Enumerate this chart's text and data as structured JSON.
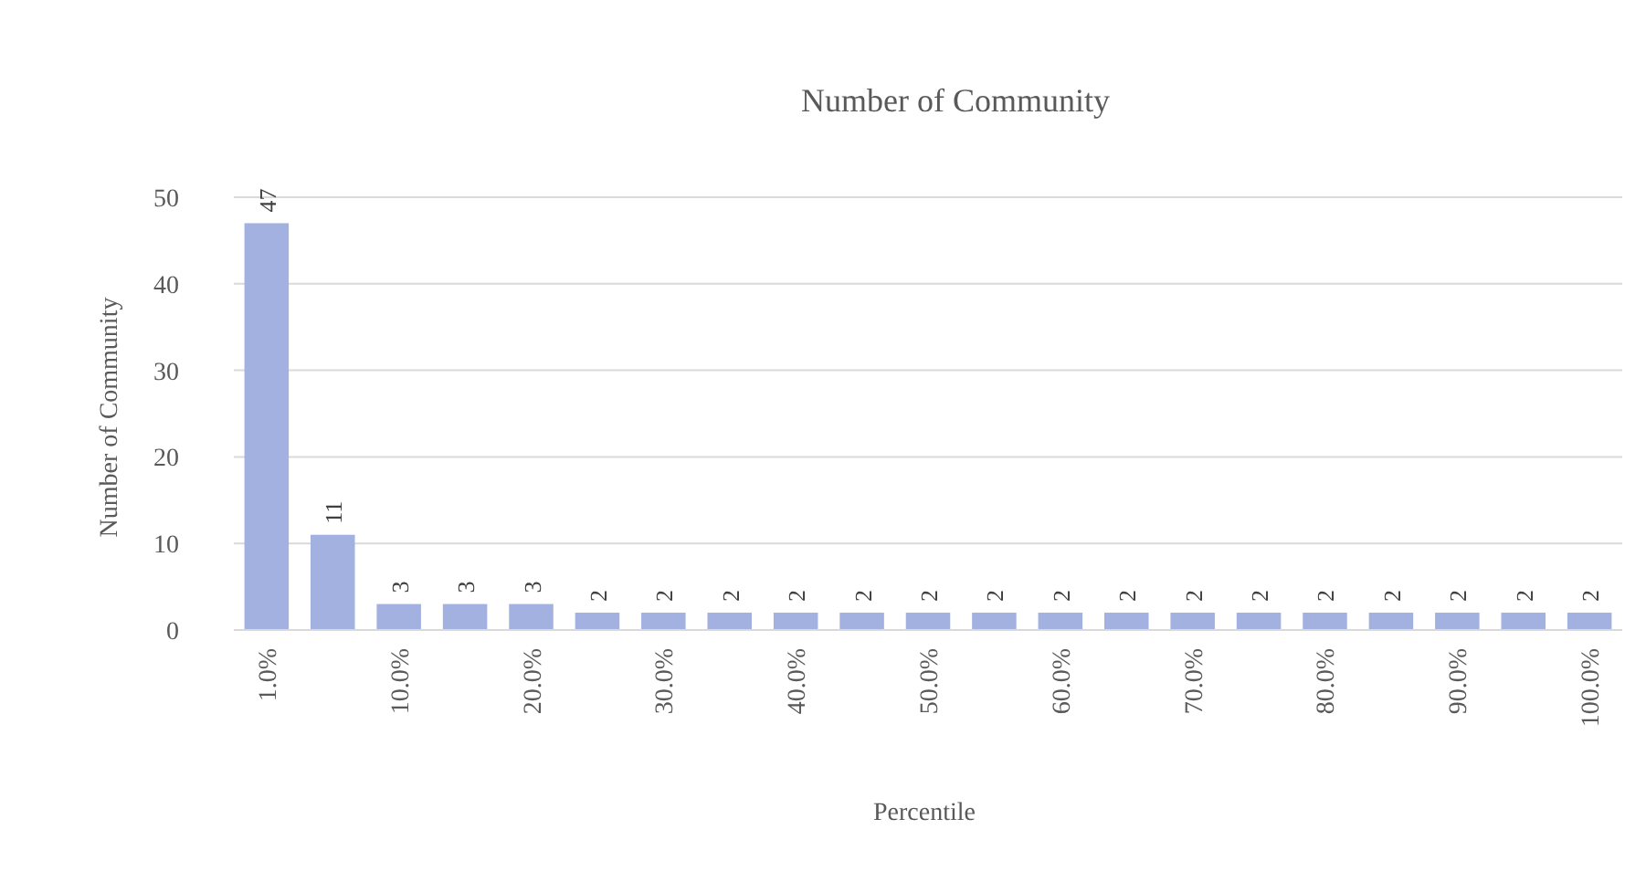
{
  "chart_data": {
    "type": "bar",
    "title": "Number of  Community",
    "xlabel": "Percentile",
    "ylabel": "Number of  Community",
    "categories": [
      "1.0%",
      null,
      "10.0%",
      null,
      "20.0%",
      null,
      "30.0%",
      null,
      "40.0%",
      null,
      "50.0%",
      null,
      "60.0%",
      null,
      "70.0%",
      null,
      "80.0%",
      null,
      "90.0%",
      null,
      "100.0%"
    ],
    "values": [
      47,
      11,
      3,
      3,
      3,
      2,
      2,
      2,
      2,
      2,
      2,
      2,
      2,
      2,
      2,
      2,
      2,
      2,
      2,
      2,
      2
    ],
    "color": "#a3b1e0",
    "ylim": [
      0,
      50
    ],
    "yticks": [
      0,
      10,
      20,
      30,
      40,
      50
    ],
    "grid": "y",
    "data_labels": true
  }
}
